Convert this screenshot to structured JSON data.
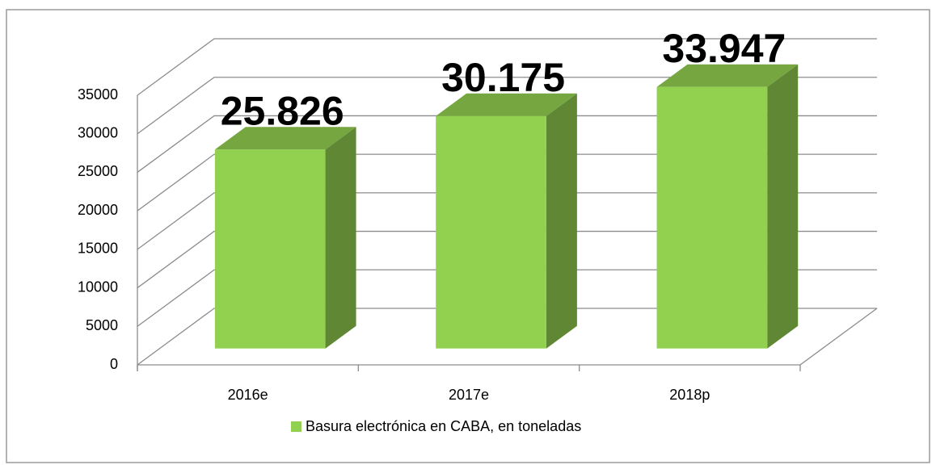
{
  "chart_data": {
    "type": "bar3d",
    "categories": [
      "2016e",
      "2017e",
      "2018p"
    ],
    "series": [
      {
        "name": "Basura electrónica en CABA, en toneladas",
        "color": "#92d050",
        "values": [
          25826,
          30175,
          33947
        ],
        "value_labels": [
          "25.826",
          "30.175",
          "33.947"
        ]
      }
    ],
    "ylim": [
      0,
      35000
    ],
    "yticks": [
      0,
      5000,
      10000,
      15000,
      20000,
      25000,
      30000,
      35000
    ],
    "grid": true,
    "legend": "bottom"
  }
}
